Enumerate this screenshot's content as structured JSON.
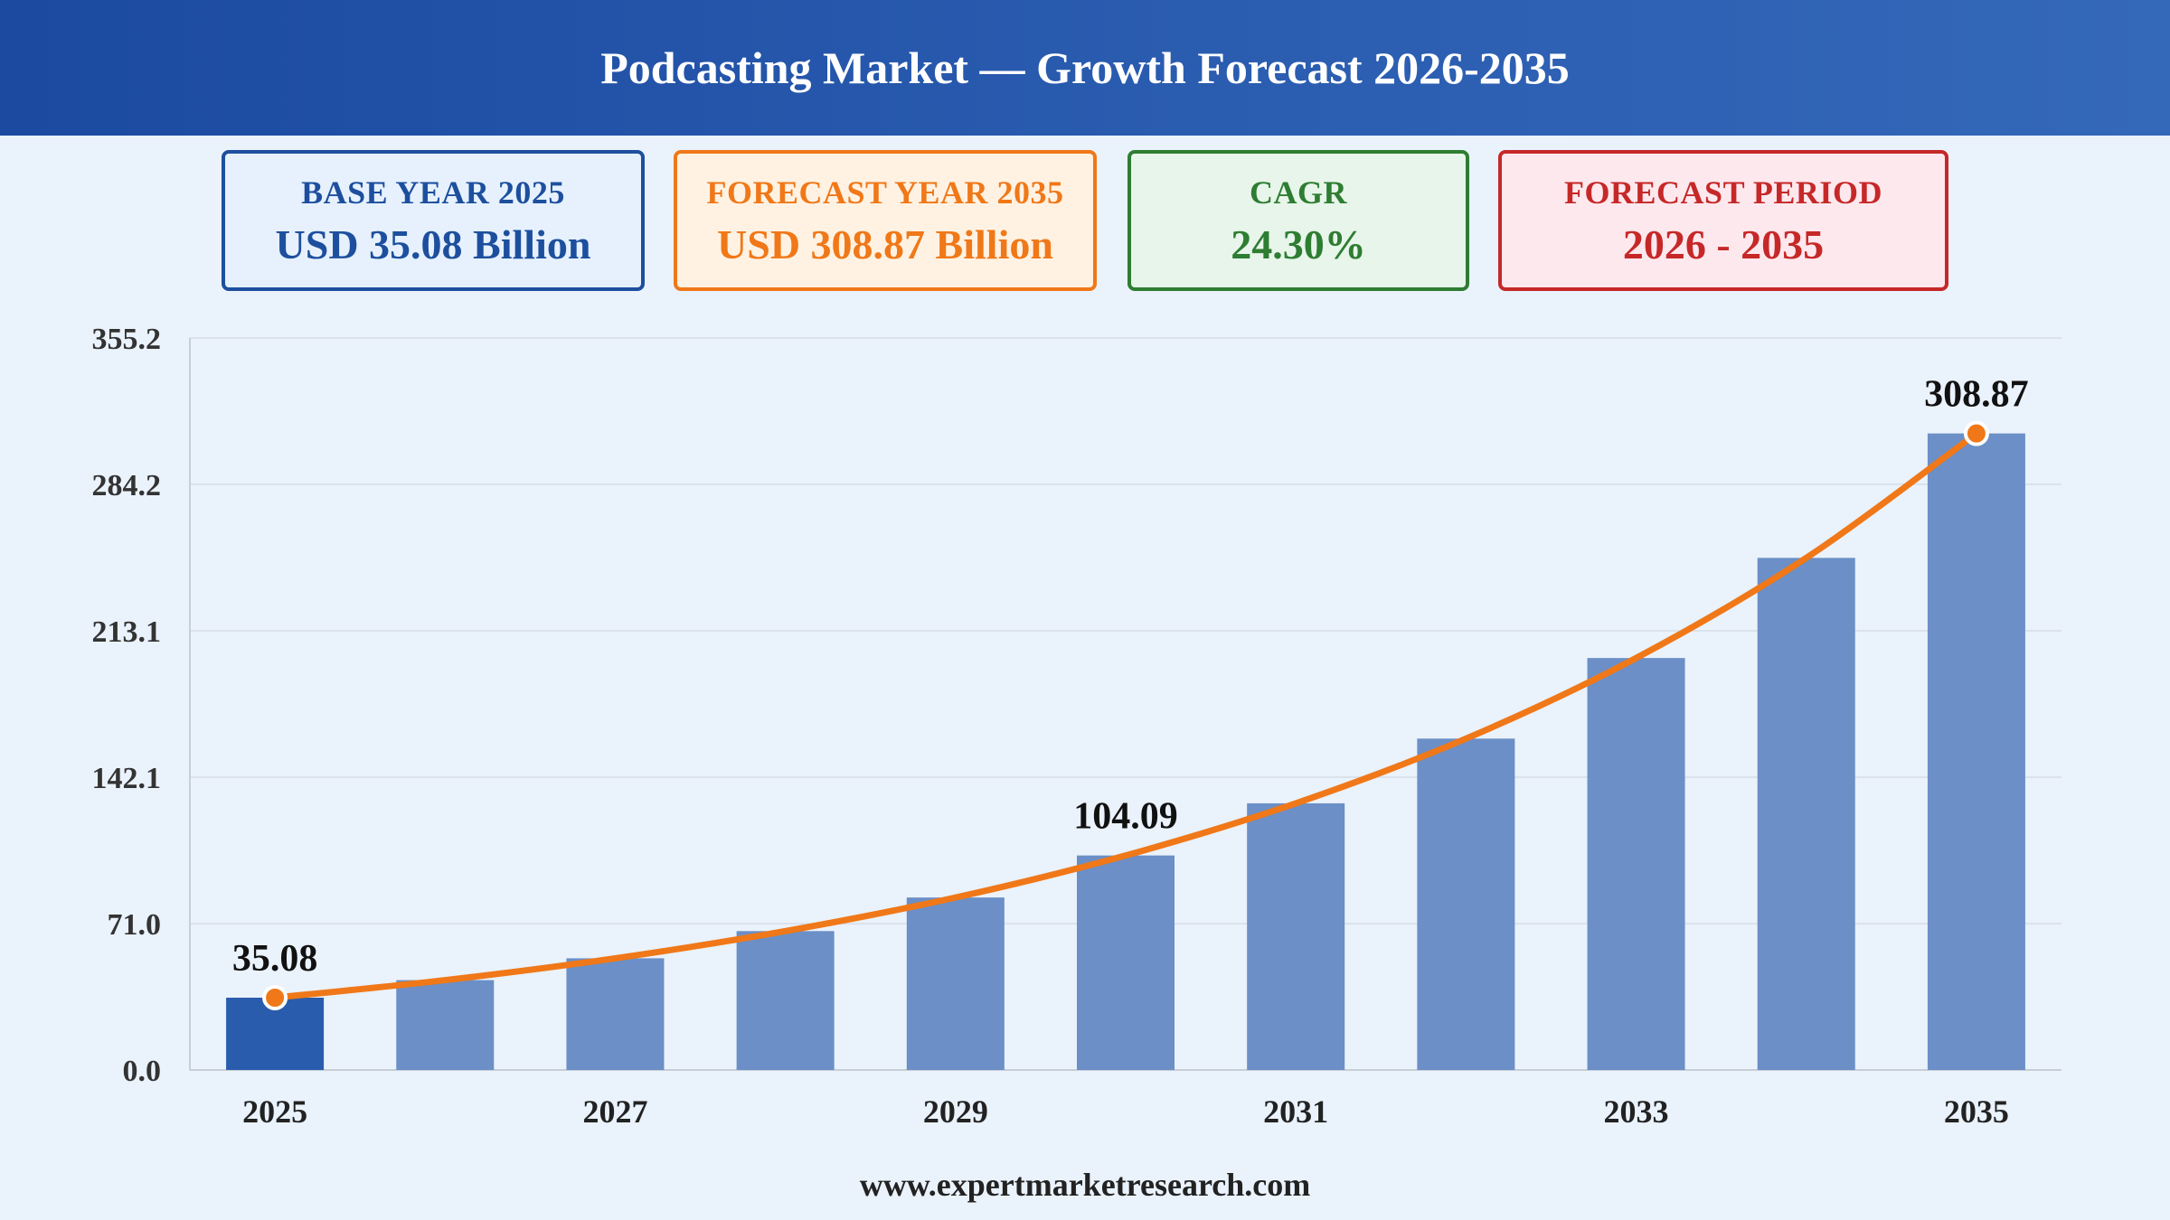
{
  "title": "Podcasting Market — Growth Forecast 2026-2035",
  "cards": [
    {
      "label": "BASE YEAR 2025",
      "value": "USD 35.08 Billion",
      "color": "#1d4f9e"
    },
    {
      "label": "FORECAST YEAR 2035",
      "value": "USD 308.87 Billion",
      "color": "#f07818"
    },
    {
      "label": "CAGR",
      "value": "24.30%",
      "color": "#2e7d32"
    },
    {
      "label": "FORECAST PERIOD",
      "value": "2026 - 2035",
      "color": "#c62828"
    }
  ],
  "chart_data": {
    "type": "bar",
    "categories": [
      "2025",
      "2026",
      "2027",
      "2028",
      "2029",
      "2030",
      "2031",
      "2032",
      "2033",
      "2034",
      "2035"
    ],
    "values": [
      35.08,
      43.6,
      54.2,
      67.4,
      83.7,
      104.09,
      129.4,
      160.8,
      199.9,
      248.5,
      308.87
    ],
    "x_tick_labels": [
      "2025",
      "2027",
      "2029",
      "2031",
      "2033",
      "2035"
    ],
    "y_ticks": [
      "0.0",
      "71.0",
      "142.1",
      "213.1",
      "284.2",
      "355.2"
    ],
    "ylim": [
      0,
      355.2
    ],
    "data_labels": [
      {
        "category": "2025",
        "text": "35.08"
      },
      {
        "category": "2030",
        "text": "104.09"
      },
      {
        "category": "2035",
        "text": "308.87"
      }
    ],
    "trend_line": true,
    "grid": true,
    "colors": {
      "bar": "#6b8fc6",
      "base_bar": "#2a5cad",
      "line": "#f07818"
    }
  },
  "footer": "www.expertmarketresearch.com"
}
